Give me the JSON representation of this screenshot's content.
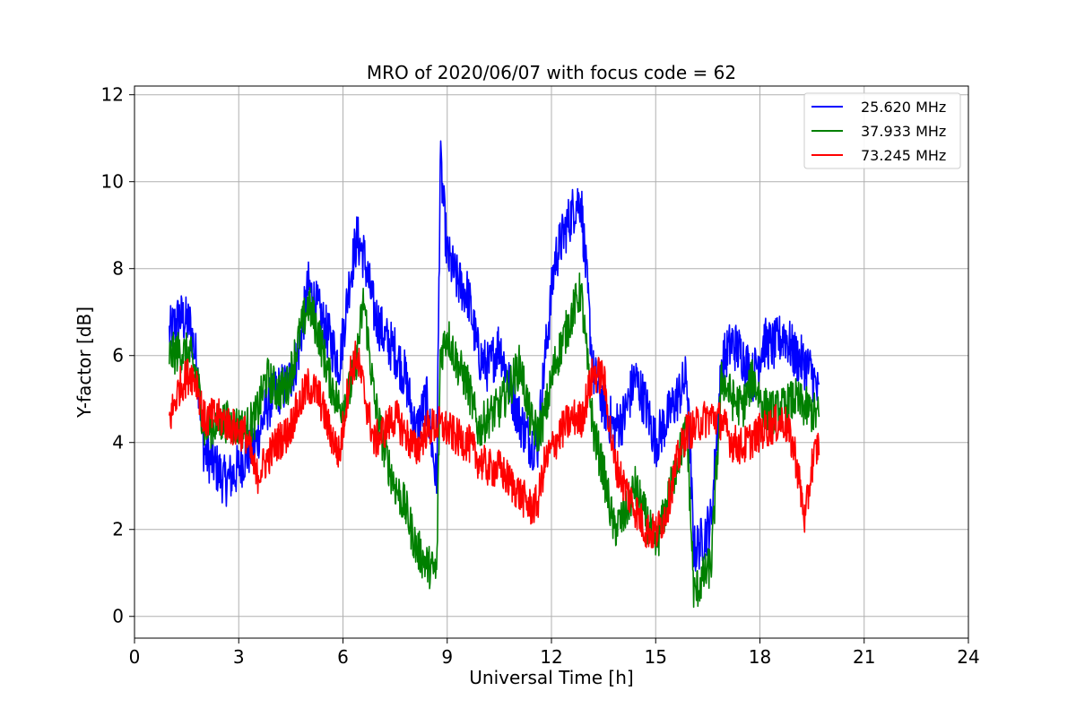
{
  "chart_data": {
    "type": "line",
    "title": "MRO of 2020/06/07 with focus code = 62",
    "xlabel": "Universal Time [h]",
    "ylabel": "Y-factor [dB]",
    "xlim": [
      0,
      24
    ],
    "ylim": [
      -0.5,
      12.2
    ],
    "xticks": [
      0,
      3,
      6,
      9,
      12,
      15,
      18,
      21,
      24
    ],
    "yticks": [
      0,
      2,
      4,
      6,
      8,
      10,
      12
    ],
    "grid": true,
    "legend_position": "top-right",
    "series": [
      {
        "name": "25.620 MHz",
        "color": "#0000ff",
        "x": [
          1.0,
          1.3,
          1.6,
          1.8,
          2.0,
          2.3,
          2.6,
          2.9,
          3.2,
          3.5,
          3.8,
          4.1,
          4.4,
          4.7,
          5.0,
          5.3,
          5.6,
          5.9,
          6.2,
          6.4,
          6.6,
          6.9,
          7.2,
          7.5,
          7.8,
          8.1,
          8.4,
          8.7,
          8.8,
          9.0,
          9.3,
          9.6,
          9.9,
          10.2,
          10.5,
          10.8,
          11.1,
          11.4,
          11.6,
          11.8,
          12.1,
          12.4,
          12.7,
          12.85,
          13.2,
          13.5,
          13.8,
          14.1,
          14.4,
          14.7,
          15.0,
          15.3,
          15.6,
          15.9,
          16.1,
          16.3,
          16.6,
          16.9,
          17.2,
          17.5,
          17.8,
          18.1,
          18.4,
          18.7,
          19.0,
          19.3,
          19.5,
          19.7
        ],
        "y": [
          6.5,
          6.9,
          6.7,
          5.8,
          3.8,
          3.5,
          3.1,
          3.3,
          3.7,
          4.0,
          4.8,
          5.2,
          5.3,
          6.0,
          7.6,
          7.0,
          6.4,
          5.8,
          7.8,
          8.7,
          8.3,
          7.0,
          6.4,
          6.1,
          5.5,
          4.2,
          5.0,
          3.0,
          10.5,
          8.3,
          7.7,
          7.4,
          6.0,
          5.7,
          6.3,
          5.3,
          4.5,
          4.0,
          3.9,
          5.8,
          8.2,
          8.9,
          9.5,
          9.6,
          5.6,
          4.9,
          4.3,
          4.6,
          5.5,
          4.9,
          4.0,
          4.5,
          5.0,
          5.5,
          1.5,
          1.7,
          2.2,
          5.8,
          6.3,
          6.0,
          5.5,
          6.3,
          6.2,
          6.5,
          6.0,
          5.8,
          5.6,
          5.0
        ]
      },
      {
        "name": "37.933 MHz",
        "color": "#008000",
        "x": [
          1.0,
          1.3,
          1.6,
          1.8,
          2.0,
          2.3,
          2.6,
          2.9,
          3.2,
          3.5,
          3.8,
          4.1,
          4.4,
          4.7,
          5.0,
          5.3,
          5.6,
          5.9,
          6.2,
          6.4,
          6.6,
          6.9,
          7.2,
          7.5,
          7.8,
          8.1,
          8.4,
          8.7,
          8.8,
          9.0,
          9.3,
          9.6,
          9.9,
          10.2,
          10.5,
          10.8,
          11.1,
          11.4,
          11.6,
          11.8,
          12.1,
          12.4,
          12.7,
          12.85,
          13.2,
          13.5,
          13.8,
          14.1,
          14.4,
          14.7,
          15.0,
          15.3,
          15.6,
          15.9,
          16.1,
          16.3,
          16.6,
          16.9,
          17.2,
          17.5,
          17.8,
          18.1,
          18.4,
          18.7,
          19.0,
          19.3,
          19.5,
          19.7
        ],
        "y": [
          6.0,
          6.1,
          6.0,
          5.5,
          4.3,
          4.4,
          4.5,
          4.4,
          4.3,
          4.6,
          5.5,
          5.2,
          5.3,
          6.3,
          7.2,
          6.5,
          5.5,
          4.8,
          5.2,
          6.0,
          7.3,
          5.0,
          3.8,
          3.0,
          2.5,
          1.6,
          1.2,
          1.0,
          6.0,
          6.5,
          5.8,
          5.3,
          4.3,
          4.6,
          4.8,
          5.3,
          5.8,
          4.5,
          4.2,
          4.6,
          5.8,
          6.5,
          7.2,
          7.5,
          4.3,
          3.3,
          2.0,
          2.3,
          3.0,
          2.3,
          1.6,
          2.5,
          3.5,
          4.3,
          0.5,
          0.8,
          1.2,
          5.5,
          5.0,
          4.8,
          5.5,
          4.8,
          4.7,
          4.8,
          5.0,
          4.8,
          4.7,
          4.6
        ]
      },
      {
        "name": "73.245 MHz",
        "color": "#ff0000",
        "x": [
          1.0,
          1.3,
          1.6,
          1.8,
          2.0,
          2.3,
          2.6,
          2.9,
          3.2,
          3.5,
          3.8,
          4.1,
          4.4,
          4.7,
          5.0,
          5.3,
          5.6,
          5.9,
          6.2,
          6.4,
          6.6,
          6.9,
          7.2,
          7.5,
          7.8,
          8.1,
          8.4,
          8.7,
          8.8,
          9.0,
          9.3,
          9.6,
          9.9,
          10.2,
          10.5,
          10.8,
          11.1,
          11.4,
          11.6,
          11.8,
          12.1,
          12.4,
          12.7,
          12.85,
          13.2,
          13.5,
          13.8,
          14.1,
          14.4,
          14.7,
          15.0,
          15.3,
          15.6,
          15.9,
          16.1,
          16.3,
          16.6,
          16.9,
          17.2,
          17.5,
          17.8,
          18.1,
          18.4,
          18.7,
          19.0,
          19.3,
          19.5,
          19.7
        ],
        "y": [
          4.5,
          5.3,
          5.6,
          5.4,
          4.5,
          4.6,
          4.5,
          4.3,
          4.2,
          3.2,
          3.6,
          4.0,
          4.2,
          4.8,
          5.3,
          5.1,
          4.3,
          3.7,
          5.6,
          6.0,
          5.2,
          4.0,
          4.3,
          4.6,
          4.2,
          3.8,
          4.3,
          4.4,
          4.4,
          4.3,
          4.1,
          4.0,
          3.6,
          3.4,
          3.4,
          3.1,
          2.8,
          2.5,
          2.6,
          3.5,
          4.0,
          4.4,
          4.6,
          4.5,
          5.6,
          5.5,
          3.6,
          3.0,
          2.5,
          2.0,
          1.9,
          2.4,
          3.5,
          4.3,
          4.3,
          4.5,
          4.6,
          4.5,
          4.0,
          3.9,
          4.1,
          4.3,
          4.4,
          4.5,
          3.8,
          2.2,
          3.5,
          4.0
        ]
      }
    ]
  }
}
